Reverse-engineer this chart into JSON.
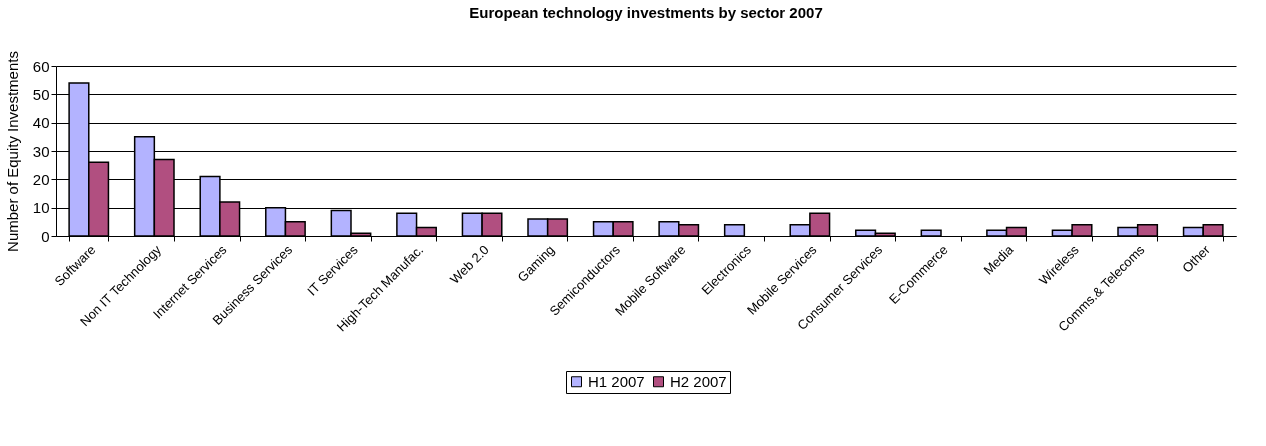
{
  "chart_data": {
    "type": "bar",
    "title": "European technology investments by sector 2007",
    "ylabel": "Number of Equity Investments",
    "categories": [
      "Software",
      "Non IT Technology",
      "Internet Services",
      "Business Services",
      "IT Services",
      "High-Tech Manufac.",
      "Web 2.0",
      "Gaming",
      "Semiconductors",
      "Mobile Software",
      "Electronics",
      "Mobile Services",
      "Consumer Services",
      "E-Commerce",
      "Media",
      "Wireless",
      "Comms.& Telecoms",
      "Other"
    ],
    "series": [
      {
        "name": "H1 2007",
        "color": "#b3b3ff",
        "values": [
          54,
          35,
          21,
          10,
          9,
          8,
          8,
          6,
          5,
          5,
          4,
          4,
          2,
          2,
          2,
          2,
          3,
          3
        ]
      },
      {
        "name": "H2 2007",
        "color": "#b14f80",
        "values": [
          26,
          27,
          12,
          5,
          1,
          3,
          8,
          6,
          5,
          4,
          null,
          8,
          1,
          null,
          3,
          4,
          4,
          4
        ]
      }
    ],
    "ylim": [
      0,
      60
    ],
    "yticks": [
      0,
      10,
      20,
      30,
      40,
      50,
      60
    ],
    "grid": "y",
    "legend": "bottom"
  }
}
